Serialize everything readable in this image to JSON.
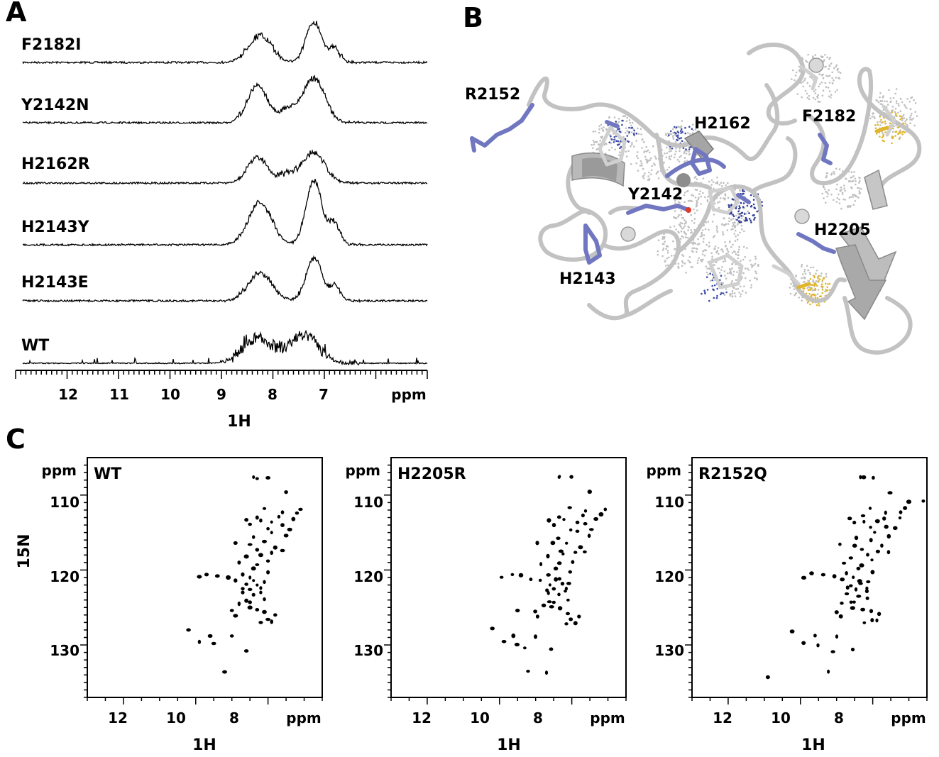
{
  "panels": {
    "A": "A",
    "B": "B",
    "C": "C"
  },
  "panel_a": {
    "traces": [
      {
        "label": "F2182I",
        "profile": "broad"
      },
      {
        "label": "Y2142N",
        "profile": "partial"
      },
      {
        "label": "H2162R",
        "profile": "partial"
      },
      {
        "label": "H2143Y",
        "profile": "broad"
      },
      {
        "label": "H2143E",
        "profile": "broad"
      },
      {
        "label": "WT",
        "profile": "folded"
      }
    ],
    "x_ticks": [
      "12",
      "11",
      "10",
      "9",
      "8",
      "7"
    ],
    "x_unit": "ppm",
    "x_title": "1H",
    "x_range": [
      13.0,
      5.0
    ]
  },
  "panel_b": {
    "residue_labels": [
      "R2152",
      "H2162",
      "F2182",
      "Y2142",
      "H2205",
      "H2143"
    ],
    "colors": {
      "backbone": "#c2c2c2",
      "sidechain": "#7077c0",
      "sulfur": "#e0b52a",
      "oxygen": "#e03b2a",
      "zinc": "#d9d9d9"
    }
  },
  "panel_c": {
    "x_ticks": [
      "12",
      "10",
      "8"
    ],
    "x_unit": "ppm",
    "x_title": "1H",
    "y_ticks": [
      "110",
      "120",
      "130"
    ],
    "y_unit": "ppm",
    "y_title": "15N",
    "x_range": [
      13.0,
      6.5
    ],
    "y_range": [
      105.0,
      137.0
    ],
    "spectra": [
      {
        "label": "WT"
      },
      {
        "label": "H2205R"
      },
      {
        "label": "R2152Q"
      }
    ]
  }
}
